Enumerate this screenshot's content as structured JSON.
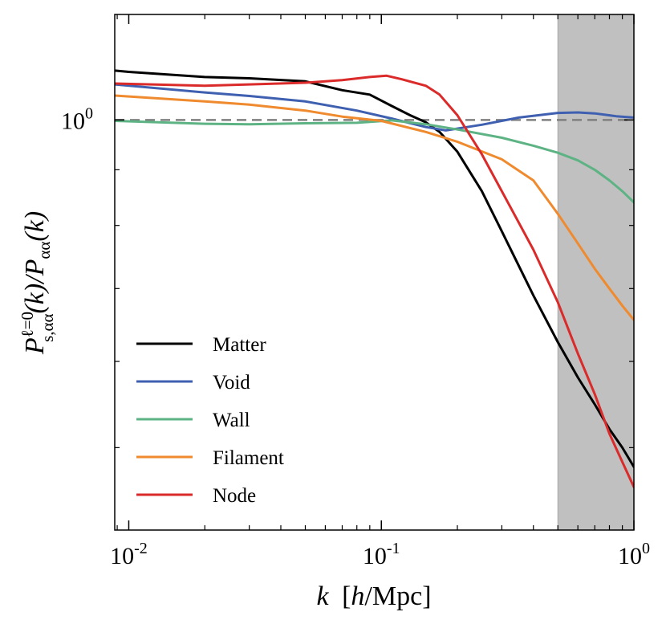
{
  "chart_data": {
    "type": "line",
    "xscale": "log",
    "yscale": "log",
    "xlim": [
      0.0088,
      1.0
    ],
    "ylim": [
      0.42,
      1.25
    ],
    "xlabel": {
      "main": "k",
      "bracket_open": "[",
      "unit_h": "h",
      "unit_rest": "/Mpc",
      "bracket_close": "]"
    },
    "ylabel": {
      "P1": "P",
      "sup1": "ℓ=0",
      "sub1": "s,αα",
      "arg1": "(k)/",
      "P2": "P",
      "sub2": "αα",
      "arg2": "(k)"
    },
    "x_ticks": [
      {
        "value": 0.01,
        "base": "10",
        "exp": "-2"
      },
      {
        "value": 0.1,
        "base": "10",
        "exp": "-1"
      },
      {
        "value": 1.0,
        "base": "10",
        "exp": "0"
      }
    ],
    "y_ticks": [
      {
        "value": 1.0,
        "base": "10",
        "exp": "0"
      }
    ],
    "reference_line": {
      "y": 1.0,
      "style": "dashed",
      "color": "#808080"
    },
    "shaded_region": {
      "x_start": 0.5,
      "x_end": 1.0,
      "color": "#c0c0c0"
    },
    "legend": {
      "position": "lower-left"
    },
    "series": [
      {
        "name": "Matter",
        "color": "#000000",
        "x": [
          0.0088,
          0.01,
          0.02,
          0.03,
          0.05,
          0.07,
          0.09,
          0.11,
          0.13,
          0.15,
          0.17,
          0.2,
          0.25,
          0.3,
          0.4,
          0.5,
          0.6,
          0.7,
          0.8,
          0.9,
          1.0
        ],
        "y": [
          1.11,
          1.107,
          1.095,
          1.092,
          1.085,
          1.065,
          1.055,
          1.03,
          1.01,
          0.995,
          0.975,
          0.935,
          0.86,
          0.79,
          0.69,
          0.625,
          0.58,
          0.548,
          0.52,
          0.5,
          0.48
        ]
      },
      {
        "name": "Void",
        "color": "#3f60b0",
        "x": [
          0.0088,
          0.02,
          0.03,
          0.05,
          0.08,
          0.11,
          0.15,
          0.18,
          0.25,
          0.35,
          0.5,
          0.6,
          0.7,
          0.85,
          1.0
        ],
        "y": [
          1.078,
          1.06,
          1.052,
          1.04,
          1.02,
          1.003,
          0.985,
          0.978,
          0.99,
          1.005,
          1.015,
          1.016,
          1.014,
          1.008,
          1.005
        ]
      },
      {
        "name": "Wall",
        "color": "#5eb384",
        "x": [
          0.0088,
          0.02,
          0.03,
          0.05,
          0.08,
          0.11,
          0.15,
          0.2,
          0.3,
          0.4,
          0.5,
          0.6,
          0.7,
          0.8,
          0.9,
          1.0
        ],
        "y": [
          0.998,
          0.992,
          0.991,
          0.993,
          0.994,
          0.999,
          0.991,
          0.98,
          0.963,
          0.947,
          0.933,
          0.918,
          0.9,
          0.88,
          0.86,
          0.84
        ]
      },
      {
        "name": "Filament",
        "color": "#ef8a2e",
        "x": [
          0.0088,
          0.02,
          0.03,
          0.05,
          0.07,
          0.1,
          0.15,
          0.2,
          0.3,
          0.4,
          0.5,
          0.6,
          0.7,
          0.8,
          0.9,
          1.0
        ],
        "y": [
          1.053,
          1.04,
          1.033,
          1.02,
          1.007,
          0.998,
          0.975,
          0.955,
          0.92,
          0.88,
          0.82,
          0.77,
          0.73,
          0.7,
          0.675,
          0.655
        ]
      },
      {
        "name": "Node",
        "color": "#da2b2a",
        "x": [
          0.0088,
          0.02,
          0.03,
          0.05,
          0.07,
          0.09,
          0.105,
          0.12,
          0.15,
          0.17,
          0.2,
          0.25,
          0.3,
          0.4,
          0.5,
          0.6,
          0.7,
          0.8,
          0.9,
          1.0
        ],
        "y": [
          1.08,
          1.075,
          1.078,
          1.082,
          1.088,
          1.095,
          1.098,
          1.09,
          1.075,
          1.055,
          1.01,
          0.93,
          0.86,
          0.76,
          0.68,
          0.61,
          0.56,
          0.515,
          0.485,
          0.46
        ]
      }
    ]
  }
}
